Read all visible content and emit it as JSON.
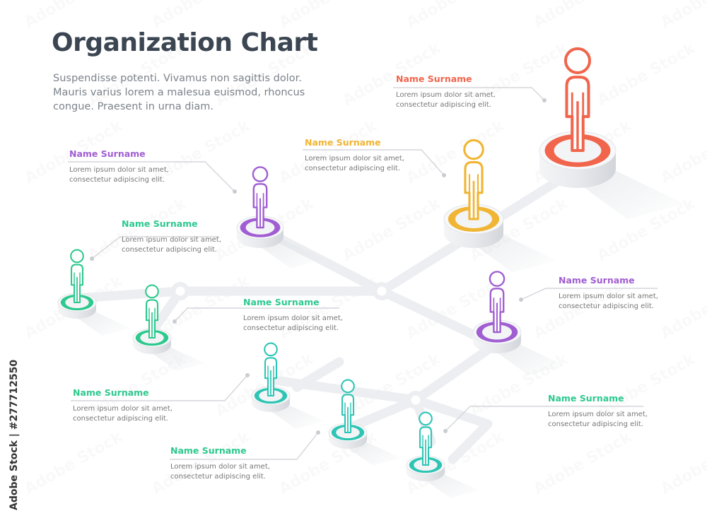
{
  "title": "Organization Chart",
  "intro": [
    "Suspendisse potenti. Vivamus non sagittis dolor.",
    "Mauris varius lorem a malesua euismod, rhoncus",
    "congue. Praesent in urna diam."
  ],
  "side_credit": "Adobe Stock | #277712550",
  "watermark": "Adobe Stock",
  "colors": {
    "red": "#f0654c",
    "yellow": "#f0b534",
    "purple": "#a05ed2",
    "green": "#2dc98e",
    "teal": "#2ec5b4",
    "text": "#3b4652",
    "connector": "#eceef1"
  },
  "members": [
    {
      "id": "ceo",
      "role_level": 1,
      "color": "red",
      "name": "Name Surname",
      "desc": [
        "Lorem ipsum dolor sit amet,",
        "consectetur adipiscing elit."
      ]
    },
    {
      "id": "vp-yellow",
      "role_level": 2,
      "color": "yellow",
      "name": "Name Surname",
      "desc": [
        "Lorem ipsum dolor sit amet,",
        "consectetur adipiscing elit."
      ]
    },
    {
      "id": "vp-purple-left",
      "role_level": 3,
      "color": "purple",
      "name": "Name Surname",
      "desc": [
        "Lorem ipsum dolor sit amet,",
        "consectetur adipiscing elit."
      ]
    },
    {
      "id": "vp-purple-right",
      "role_level": 3,
      "color": "purple",
      "name": "Name Surname",
      "desc": [
        "Lorem ipsum dolor sit amet,",
        "consectetur adipiscing elit."
      ]
    },
    {
      "id": "staff-green-1",
      "role_level": 4,
      "color": "green",
      "name": "Name Surname",
      "desc": [
        "Lorem ipsum dolor sit amet,",
        "consectetur adipiscing elit."
      ]
    },
    {
      "id": "staff-green-2",
      "role_level": 4,
      "color": "green",
      "name": "Name Surname",
      "desc": [
        "Lorem ipsum dolor sit amet,",
        "consectetur adipiscing elit."
      ]
    },
    {
      "id": "staff-teal-1",
      "role_level": 4,
      "color": "teal",
      "name": "Name Surname",
      "desc": [
        "Lorem ipsum dolor sit amet,",
        "consectetur adipiscing elit."
      ]
    },
    {
      "id": "staff-teal-2",
      "role_level": 4,
      "color": "teal",
      "name": "Name Surname",
      "desc": [
        "Lorem ipsum dolor sit amet,",
        "consectetur adipiscing elit."
      ]
    },
    {
      "id": "staff-teal-3",
      "role_level": 4,
      "color": "teal",
      "name": "Name Surname",
      "desc": [
        "Lorem ipsum dolor sit amet,",
        "consectetur adipiscing elit."
      ]
    }
  ]
}
